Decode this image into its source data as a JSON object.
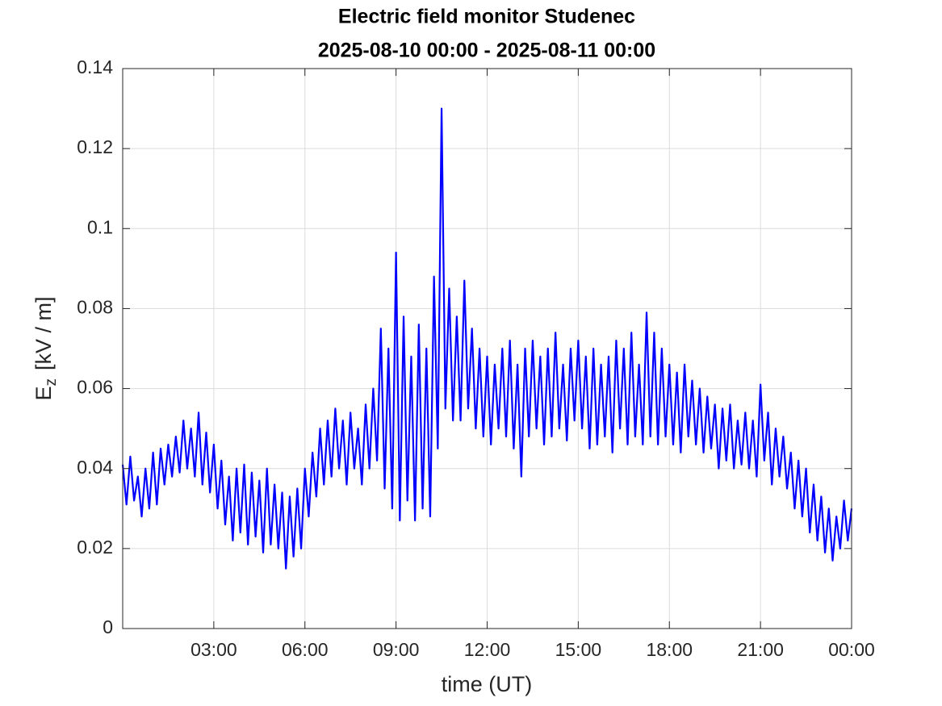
{
  "chart_data": {
    "type": "line",
    "title": "Electric field monitor Studenec",
    "subtitle": "2025-08-10 00:00 - 2025-08-11 00:00",
    "xlabel": "time (UT)",
    "ylabel_parts": [
      "E",
      "z",
      "[kV / m]"
    ],
    "color": "#0000ff",
    "grid": true,
    "xlim": [
      0,
      24
    ],
    "ylim": [
      0,
      0.14
    ],
    "xticks": [
      {
        "value": 3,
        "label": "03:00"
      },
      {
        "value": 6,
        "label": "06:00"
      },
      {
        "value": 9,
        "label": "09:00"
      },
      {
        "value": 12,
        "label": "12:00"
      },
      {
        "value": 15,
        "label": "15:00"
      },
      {
        "value": 18,
        "label": "18:00"
      },
      {
        "value": 21,
        "label": "21:00"
      },
      {
        "value": 24,
        "label": "00:00"
      }
    ],
    "yticks": [
      0,
      0.02,
      0.04,
      0.06,
      0.08,
      0.1,
      0.12,
      0.14
    ],
    "x": [
      0,
      0.125,
      0.25,
      0.375,
      0.5,
      0.625,
      0.75,
      0.875,
      1,
      1.125,
      1.25,
      1.375,
      1.5,
      1.625,
      1.75,
      1.875,
      2,
      2.125,
      2.25,
      2.375,
      2.5,
      2.625,
      2.75,
      2.875,
      3,
      3.125,
      3.25,
      3.375,
      3.5,
      3.625,
      3.75,
      3.875,
      4,
      4.125,
      4.25,
      4.375,
      4.5,
      4.625,
      4.75,
      4.875,
      5,
      5.125,
      5.25,
      5.375,
      5.5,
      5.625,
      5.75,
      5.875,
      6,
      6.125,
      6.25,
      6.375,
      6.5,
      6.625,
      6.75,
      6.875,
      7,
      7.125,
      7.25,
      7.375,
      7.5,
      7.625,
      7.75,
      7.875,
      8,
      8.125,
      8.25,
      8.375,
      8.5,
      8.625,
      8.75,
      8.875,
      9,
      9.125,
      9.25,
      9.375,
      9.5,
      9.625,
      9.75,
      9.875,
      10,
      10.125,
      10.25,
      10.375,
      10.5,
      10.625,
      10.75,
      10.875,
      11,
      11.125,
      11.25,
      11.375,
      11.5,
      11.625,
      11.75,
      11.875,
      12,
      12.125,
      12.25,
      12.375,
      12.5,
      12.625,
      12.75,
      12.875,
      13,
      13.125,
      13.25,
      13.375,
      13.5,
      13.625,
      13.75,
      13.875,
      14,
      14.125,
      14.25,
      14.375,
      14.5,
      14.625,
      14.75,
      14.875,
      15,
      15.125,
      15.25,
      15.375,
      15.5,
      15.625,
      15.75,
      15.875,
      16,
      16.125,
      16.25,
      16.375,
      16.5,
      16.625,
      16.75,
      16.875,
      17,
      17.125,
      17.25,
      17.375,
      17.5,
      17.625,
      17.75,
      17.875,
      18,
      18.125,
      18.25,
      18.375,
      18.5,
      18.625,
      18.75,
      18.875,
      19,
      19.125,
      19.25,
      19.375,
      19.5,
      19.625,
      19.75,
      19.875,
      20,
      20.125,
      20.25,
      20.375,
      20.5,
      20.625,
      20.75,
      20.875,
      21,
      21.125,
      21.25,
      21.375,
      21.5,
      21.625,
      21.75,
      21.875,
      22,
      22.125,
      22.25,
      22.375,
      22.5,
      22.625,
      22.75,
      22.875,
      23,
      23.125,
      23.25,
      23.375,
      23.5,
      23.625,
      23.75,
      23.875,
      24
    ],
    "values": [
      0.041,
      0.031,
      0.043,
      0.032,
      0.038,
      0.028,
      0.04,
      0.03,
      0.044,
      0.031,
      0.045,
      0.036,
      0.046,
      0.038,
      0.048,
      0.039,
      0.052,
      0.04,
      0.05,
      0.038,
      0.054,
      0.036,
      0.049,
      0.034,
      0.046,
      0.03,
      0.042,
      0.026,
      0.038,
      0.022,
      0.04,
      0.024,
      0.041,
      0.021,
      0.039,
      0.023,
      0.037,
      0.019,
      0.04,
      0.021,
      0.036,
      0.02,
      0.034,
      0.015,
      0.033,
      0.018,
      0.035,
      0.02,
      0.04,
      0.028,
      0.044,
      0.033,
      0.05,
      0.036,
      0.052,
      0.038,
      0.055,
      0.04,
      0.052,
      0.036,
      0.054,
      0.04,
      0.05,
      0.036,
      0.056,
      0.04,
      0.06,
      0.042,
      0.075,
      0.035,
      0.07,
      0.03,
      0.094,
      0.027,
      0.078,
      0.032,
      0.068,
      0.027,
      0.076,
      0.03,
      0.07,
      0.028,
      0.088,
      0.045,
      0.13,
      0.055,
      0.085,
      0.052,
      0.078,
      0.052,
      0.087,
      0.055,
      0.075,
      0.05,
      0.07,
      0.048,
      0.068,
      0.046,
      0.066,
      0.05,
      0.07,
      0.048,
      0.072,
      0.045,
      0.066,
      0.038,
      0.07,
      0.048,
      0.072,
      0.05,
      0.068,
      0.046,
      0.07,
      0.048,
      0.074,
      0.05,
      0.066,
      0.047,
      0.07,
      0.052,
      0.072,
      0.05,
      0.068,
      0.045,
      0.07,
      0.046,
      0.066,
      0.048,
      0.068,
      0.044,
      0.072,
      0.05,
      0.07,
      0.046,
      0.074,
      0.048,
      0.066,
      0.046,
      0.079,
      0.048,
      0.074,
      0.046,
      0.07,
      0.048,
      0.066,
      0.046,
      0.064,
      0.044,
      0.066,
      0.048,
      0.062,
      0.046,
      0.06,
      0.044,
      0.058,
      0.045,
      0.056,
      0.04,
      0.055,
      0.042,
      0.056,
      0.04,
      0.052,
      0.041,
      0.054,
      0.04,
      0.052,
      0.038,
      0.061,
      0.042,
      0.054,
      0.036,
      0.05,
      0.038,
      0.048,
      0.035,
      0.044,
      0.03,
      0.042,
      0.028,
      0.04,
      0.024,
      0.036,
      0.022,
      0.033,
      0.019,
      0.03,
      0.017,
      0.028,
      0.02,
      0.032,
      0.022,
      0.03
    ]
  }
}
